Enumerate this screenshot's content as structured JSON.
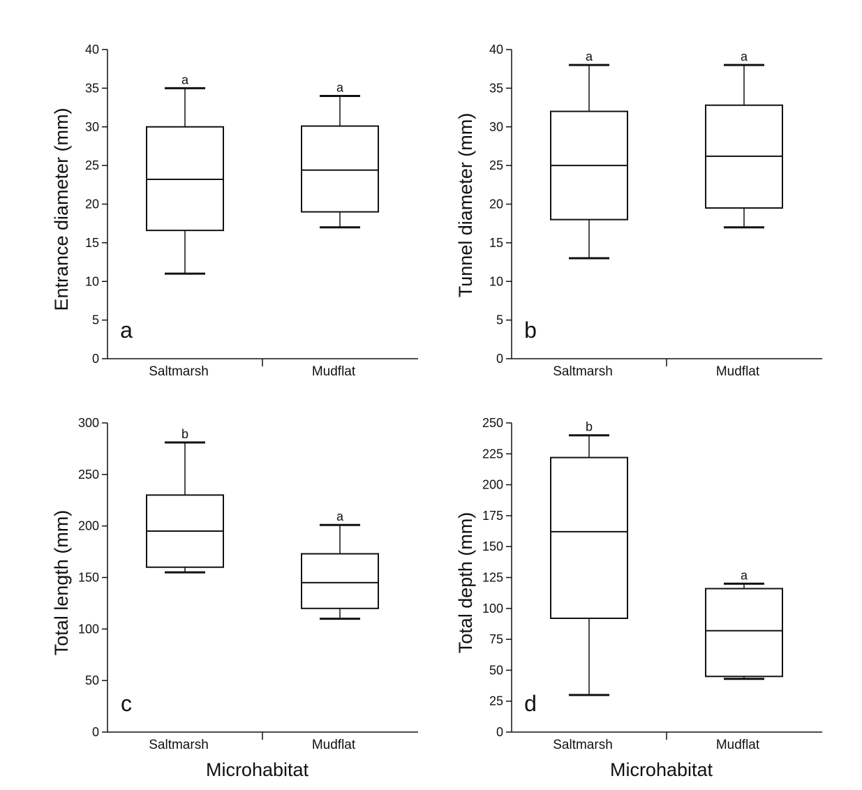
{
  "chart_data": [
    {
      "type": "boxplot",
      "panel_label": "a",
      "ylabel": "Entrance diameter (mm)",
      "xlabel": "",
      "ylim": [
        0,
        40
      ],
      "yticks": [
        0,
        5,
        10,
        15,
        20,
        25,
        30,
        35,
        40
      ],
      "categories": [
        "Saltmarsh",
        "Mudflat"
      ],
      "boxes": [
        {
          "category": "Saltmarsh",
          "min": 11,
          "q1": 16.6,
          "median": 23.2,
          "q3": 30,
          "max": 35,
          "sig": "a"
        },
        {
          "category": "Mudflat",
          "min": 17,
          "q1": 19,
          "median": 24.4,
          "q3": 30.1,
          "max": 34,
          "sig": "a"
        }
      ]
    },
    {
      "type": "boxplot",
      "panel_label": "b",
      "ylabel": "Tunnel diameter (mm)",
      "xlabel": "",
      "ylim": [
        0,
        40
      ],
      "yticks": [
        0,
        5,
        10,
        15,
        20,
        25,
        30,
        35,
        40
      ],
      "categories": [
        "Saltmarsh",
        "Mudflat"
      ],
      "boxes": [
        {
          "category": "Saltmarsh",
          "min": 13,
          "q1": 18,
          "median": 25,
          "q3": 32,
          "max": 38,
          "sig": "a"
        },
        {
          "category": "Mudflat",
          "min": 17,
          "q1": 19.5,
          "median": 26.2,
          "q3": 32.8,
          "max": 38,
          "sig": "a"
        }
      ]
    },
    {
      "type": "boxplot",
      "panel_label": "c",
      "ylabel": "Total length (mm)",
      "xlabel": "Microhabitat",
      "ylim": [
        0,
        300
      ],
      "yticks": [
        0,
        50,
        100,
        150,
        200,
        250,
        300
      ],
      "categories": [
        "Saltmarsh",
        "Mudflat"
      ],
      "boxes": [
        {
          "category": "Saltmarsh",
          "min": 155,
          "q1": 160,
          "median": 195,
          "q3": 230,
          "max": 281,
          "sig": "b"
        },
        {
          "category": "Mudflat",
          "min": 110,
          "q1": 120,
          "median": 145,
          "q3": 173,
          "max": 201,
          "sig": "a"
        }
      ]
    },
    {
      "type": "boxplot",
      "panel_label": "d",
      "ylabel": "Total depth (mm)",
      "xlabel": "Microhabitat",
      "ylim": [
        0,
        250
      ],
      "yticks": [
        0,
        25,
        50,
        75,
        100,
        125,
        150,
        175,
        200,
        225,
        250
      ],
      "categories": [
        "Saltmarsh",
        "Mudflat"
      ],
      "boxes": [
        {
          "category": "Saltmarsh",
          "min": 30,
          "q1": 92,
          "median": 162,
          "q3": 222,
          "max": 240,
          "sig": "b"
        },
        {
          "category": "Mudflat",
          "min": 43,
          "q1": 45,
          "median": 82,
          "q3": 116,
          "max": 120,
          "sig": "a"
        }
      ]
    }
  ]
}
